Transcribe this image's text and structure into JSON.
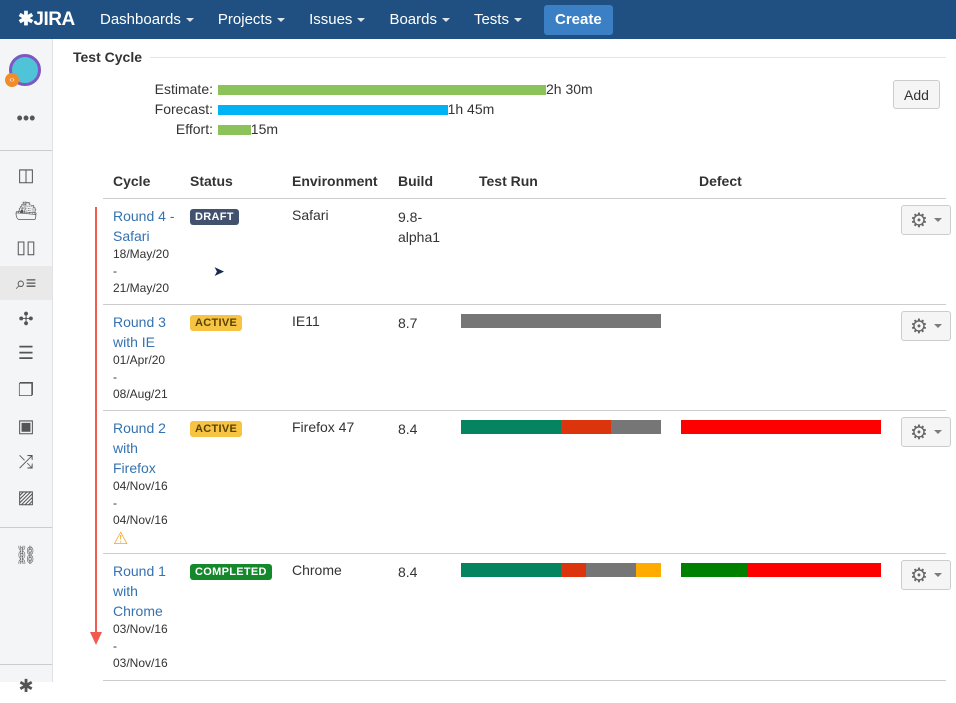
{
  "header": {
    "logo": "JIRA",
    "nav": [
      "Dashboards",
      "Projects",
      "Issues",
      "Boards",
      "Tests"
    ],
    "create": "Create"
  },
  "sidebar": {
    "items": [
      "board-icon",
      "releases-icon",
      "reports-icon",
      "search-tests-icon",
      "addons-icon",
      "text-icon",
      "pages-icon",
      "components-icon",
      "shuffle-icon",
      "images-icon"
    ],
    "link": "link-icon"
  },
  "section": {
    "title": "Test Cycle"
  },
  "timing": {
    "estimate_label": "Estimate:",
    "estimate": "2h 30m",
    "estimate_minutes": 150,
    "forecast_label": "Forecast:",
    "forecast": "1h 45m",
    "forecast_minutes": 105,
    "effort_label": "Effort:",
    "effort": "15m",
    "effort_minutes": 15,
    "add": "Add",
    "colors": {
      "estimate": "#8bc35a",
      "forecast": "#00b3f5",
      "effort": "#8bc35a"
    }
  },
  "table": {
    "headers": [
      "Cycle",
      "Status",
      "Environment",
      "Build",
      "Test Run",
      "Defect"
    ],
    "rows": [
      {
        "name": "Round 4 - Safari",
        "start": "18/May/20",
        "sep": "-",
        "end": "21/May/20",
        "status": "DRAFT",
        "status_bg": "#42526e",
        "status_fg": "#fff",
        "env": "Safari",
        "build": "9.8-alpha1",
        "test_run": [],
        "defect": [],
        "warning": false
      },
      {
        "name": "Round 3 with IE",
        "start": "01/Apr/20",
        "sep": "-",
        "end": "08/Aug/21",
        "status": "ACTIVE",
        "status_bg": "#f6c342",
        "status_fg": "#594300",
        "env": "IE11",
        "build": "8.7",
        "test_run": [
          {
            "pct": 100,
            "color": "#767676"
          }
        ],
        "defect": [],
        "warning": false
      },
      {
        "name": "Round 2 with Firefox",
        "start": "04/Nov/16",
        "sep": "-",
        "end": "04/Nov/16",
        "status": "ACTIVE",
        "status_bg": "#f6c342",
        "status_fg": "#594300",
        "env": "Firefox 47",
        "build": "8.4",
        "test_run": [
          {
            "pct": 50,
            "color": "#04855f"
          },
          {
            "pct": 25,
            "color": "#dc350e"
          },
          {
            "pct": 25,
            "color": "#767676"
          }
        ],
        "defect": [
          {
            "pct": 100,
            "color": "#ff0000"
          }
        ],
        "warning": true
      },
      {
        "name": "Round 1 with Chrome",
        "start": "03/Nov/16",
        "sep": "-",
        "end": "03/Nov/16",
        "status": "COMPLETED",
        "status_bg": "#14892c",
        "status_fg": "#fff",
        "env": "Chrome",
        "build": "8.4",
        "test_run": [
          {
            "pct": 50,
            "color": "#04855f"
          },
          {
            "pct": 12.5,
            "color": "#dc350e"
          },
          {
            "pct": 25,
            "color": "#767676"
          },
          {
            "pct": 12.5,
            "color": "#ffab00"
          }
        ],
        "defect": [
          {
            "pct": 33,
            "color": "#008000"
          },
          {
            "pct": 67,
            "color": "#ff0000"
          }
        ],
        "warning": false
      }
    ]
  }
}
